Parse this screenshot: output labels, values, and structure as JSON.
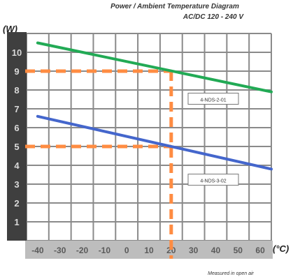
{
  "chart_data": {
    "type": "line",
    "title": "Power / Ambient Temperature Diagram",
    "subtitle": "AC/DC 120 - 240 V",
    "ylabel": "(W)",
    "xlabel": "(°C)",
    "note": "Measured in open air",
    "x_ticks": [
      -40,
      -30,
      -20,
      -10,
      0,
      10,
      20,
      30,
      40,
      50,
      60
    ],
    "y_ticks": [
      1,
      2,
      3,
      4,
      5,
      6,
      7,
      8,
      9,
      10
    ],
    "xlim": [
      -45,
      65
    ],
    "ylim": [
      0,
      11
    ],
    "grid": true,
    "series": [
      {
        "name": "4-NDS-2-01",
        "color": "#22aa55",
        "x": [
          -40,
          65
        ],
        "y": [
          10.5,
          7.9
        ]
      },
      {
        "name": "4-NDS-3-02",
        "color": "#4466cc",
        "x": [
          -40,
          65
        ],
        "y": [
          6.6,
          3.8
        ]
      }
    ],
    "reference_lines": {
      "color": "#ff8c42",
      "x": 20,
      "y": [
        9,
        5
      ]
    }
  }
}
